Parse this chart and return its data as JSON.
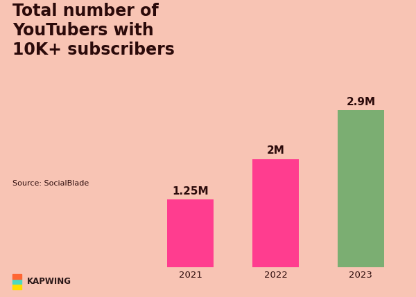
{
  "categories": [
    "2021",
    "2022",
    "2023"
  ],
  "values": [
    1.25,
    2.0,
    2.9
  ],
  "labels": [
    "1.25M",
    "2M",
    "2.9M"
  ],
  "bar_colors": [
    "#FF3D8F",
    "#FF3D8F",
    "#7BAE72"
  ],
  "background_color": "#F8C4B4",
  "title_lines": [
    "Total number of",
    "YouTubers with",
    "10K+ subscribers"
  ],
  "source_text": "Source: SocialBlade",
  "title_color": "#2B0A0A",
  "label_color": "#2B0A0A",
  "source_color": "#2B0A0A",
  "xlabel_color": "#2B0A0A",
  "kapwing_text": "KAPWING",
  "kapwing_color": "#2B1818",
  "title_fontsize": 17,
  "source_fontsize": 8,
  "label_fontsize": 11,
  "tick_fontsize": 9.5,
  "kapwing_fontsize": 8.5,
  "ylim": [
    0,
    3.4
  ],
  "bar_width": 0.55,
  "logo_colors": [
    "#FFDD00",
    "#4DD9C0",
    "#FF6633"
  ]
}
